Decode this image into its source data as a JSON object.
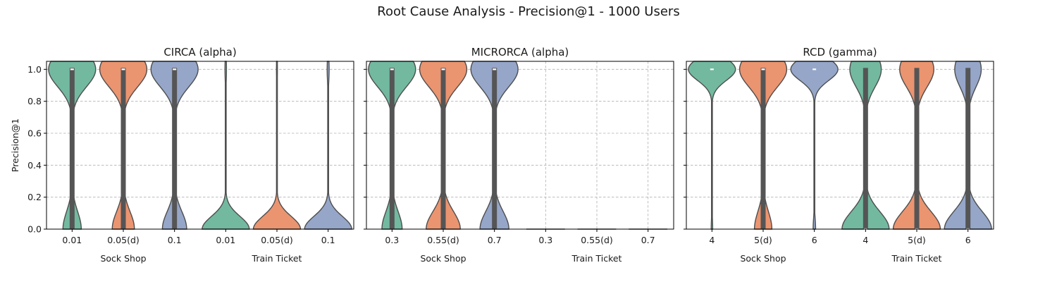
{
  "figure": {
    "title": "Root Cause Analysis - Precision@1 - 1000 Users",
    "ylabel": "Precision@1"
  },
  "colors": {
    "green": "#72b9a0",
    "orange": "#eb9470",
    "blue": "#95a6c9",
    "box": "#555555"
  },
  "chart_data": [
    {
      "type": "violin",
      "title": "CIRCA (alpha)",
      "ylim": [
        0,
        1.05
      ],
      "yticks": [
        "0.0",
        "0.2",
        "0.4",
        "0.6",
        "0.8",
        "1.0"
      ],
      "grid": true,
      "groups": [
        "Sock Shop",
        "Train Ticket"
      ],
      "violins": [
        {
          "label": "0.01",
          "group": "Sock Shop",
          "color": "green",
          "profile": "bimodal",
          "modes": {
            "top": 0.72,
            "bottom": 0.28
          },
          "q1": 0.0,
          "q3": 1.0,
          "median": 1.0
        },
        {
          "label": "0.05(d)",
          "group": "Sock Shop",
          "color": "orange",
          "profile": "bimodal",
          "modes": {
            "top": 0.68,
            "bottom": 0.32
          },
          "q1": 0.0,
          "q3": 1.0,
          "median": 1.0
        },
        {
          "label": "0.1",
          "group": "Sock Shop",
          "color": "blue",
          "profile": "bimodal",
          "modes": {
            "top": 0.66,
            "bottom": 0.34
          },
          "q1": 0.0,
          "q3": 1.0,
          "median": 1.0
        },
        {
          "label": "0.01",
          "group": "Train Ticket",
          "color": "green",
          "profile": "bottom_heavy",
          "modes": {
            "top": 0.03,
            "bottom": 0.97
          },
          "q1": 0.0,
          "q3": 0.0,
          "median": 0.0
        },
        {
          "label": "0.05(d)",
          "group": "Train Ticket",
          "color": "orange",
          "profile": "bottom_heavy",
          "modes": {
            "top": 0.02,
            "bottom": 0.98
          },
          "q1": 0.0,
          "q3": 0.0,
          "median": 0.0
        },
        {
          "label": "0.1",
          "group": "Train Ticket",
          "color": "blue",
          "profile": "bottom_heavy",
          "modes": {
            "top": 0.04,
            "bottom": 0.96
          },
          "q1": 0.0,
          "q3": 0.0,
          "median": 0.0
        }
      ]
    },
    {
      "type": "violin",
      "title": "MICRORCA (alpha)",
      "ylim": [
        0,
        1.05
      ],
      "yticks": [
        "0.0",
        "0.2",
        "0.4",
        "0.6",
        "0.8",
        "1.0"
      ],
      "grid": true,
      "groups": [
        "Sock Shop",
        "Train Ticket"
      ],
      "violins": [
        {
          "label": "0.3",
          "group": "Sock Shop",
          "color": "green",
          "profile": "bimodal",
          "modes": {
            "top": 0.7,
            "bottom": 0.3
          },
          "q1": 0.0,
          "q3": 1.0,
          "median": 1.0
        },
        {
          "label": "0.55(d)",
          "group": "Sock Shop",
          "color": "orange",
          "profile": "bimodal",
          "modes": {
            "top": 0.58,
            "bottom": 0.42
          },
          "q1": 0.0,
          "q3": 1.0,
          "median": 1.0
        },
        {
          "label": "0.7",
          "group": "Sock Shop",
          "color": "blue",
          "profile": "bimodal",
          "modes": {
            "top": 0.62,
            "bottom": 0.38
          },
          "q1": 0.0,
          "q3": 1.0,
          "median": 1.0
        },
        {
          "label": "0.3",
          "group": "Train Ticket",
          "color": "green",
          "profile": "flat",
          "modes": {
            "top": 0.0,
            "bottom": 1.0
          },
          "q1": 0.0,
          "q3": 0.0,
          "median": 0.0
        },
        {
          "label": "0.55(d)",
          "group": "Train Ticket",
          "color": "orange",
          "profile": "flat",
          "modes": {
            "top": 0.0,
            "bottom": 1.0
          },
          "q1": 0.0,
          "q3": 0.0,
          "median": 0.0
        },
        {
          "label": "0.7",
          "group": "Train Ticket",
          "color": "blue",
          "profile": "flat",
          "modes": {
            "top": 0.0,
            "bottom": 1.0
          },
          "q1": 0.0,
          "q3": 0.0,
          "median": 0.0
        }
      ]
    },
    {
      "type": "violin",
      "title": "RCD (gamma)",
      "ylim": [
        0,
        1.05
      ],
      "yticks": [
        "0.0",
        "0.2",
        "0.4",
        "0.6",
        "0.8",
        "1.0"
      ],
      "grid": true,
      "groups": [
        "Sock Shop",
        "Train Ticket"
      ],
      "violins": [
        {
          "label": "4",
          "group": "Sock Shop",
          "color": "green",
          "profile": "top_heavy",
          "modes": {
            "top": 0.97,
            "bottom": 0.03
          },
          "q1": 1.0,
          "q3": 1.0,
          "median": 1.0
        },
        {
          "label": "5(d)",
          "group": "Sock Shop",
          "color": "orange",
          "profile": "bimodal",
          "modes": {
            "top": 0.73,
            "bottom": 0.27
          },
          "q1": 0.0,
          "q3": 1.0,
          "median": 1.0
        },
        {
          "label": "6",
          "group": "Sock Shop",
          "color": "blue",
          "profile": "top_heavy",
          "modes": {
            "top": 0.95,
            "bottom": 0.05
          },
          "q1": 1.0,
          "q3": 1.0,
          "median": 1.0
        },
        {
          "label": "4",
          "group": "Train Ticket",
          "color": "green",
          "profile": "bimodal",
          "modes": {
            "top": 0.4,
            "bottom": 0.6
          },
          "q1": 0.0,
          "q3": 1.0,
          "median": 0.0
        },
        {
          "label": "5(d)",
          "group": "Train Ticket",
          "color": "orange",
          "profile": "bimodal",
          "modes": {
            "top": 0.42,
            "bottom": 0.58
          },
          "q1": 0.0,
          "q3": 1.0,
          "median": 0.0
        },
        {
          "label": "6",
          "group": "Train Ticket",
          "color": "blue",
          "profile": "bimodal",
          "modes": {
            "top": 0.36,
            "bottom": 0.64
          },
          "q1": 0.0,
          "q3": 1.0,
          "median": 0.0
        }
      ]
    }
  ]
}
